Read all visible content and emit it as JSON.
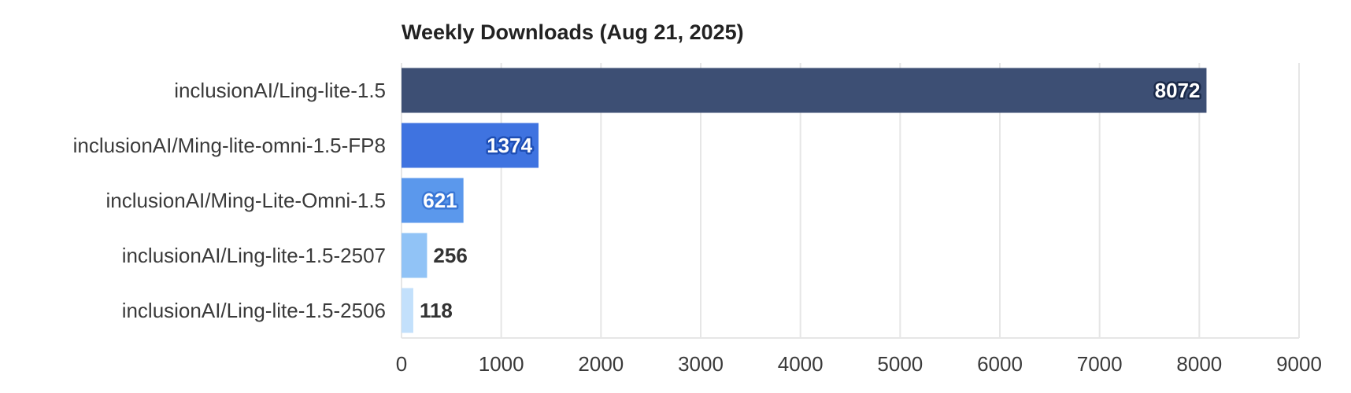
{
  "chart_data": {
    "type": "bar",
    "orientation": "horizontal",
    "title": "Weekly Downloads (Aug 21, 2025)",
    "xlabel": "",
    "ylabel": "",
    "xlim": [
      0,
      9000
    ],
    "ticks": [
      "0",
      "1000",
      "2000",
      "3000",
      "4000",
      "5000",
      "6000",
      "7000",
      "8000",
      "9000"
    ],
    "grid": true,
    "categories": [
      "inclusionAI/Ling-lite-1.5",
      "inclusionAI/Ming-lite-omni-1.5-FP8",
      "inclusionAI/Ming-Lite-Omni-1.5",
      "inclusionAI/Ling-lite-1.5-2507",
      "inclusionAI/Ling-lite-1.5-2506"
    ],
    "values": [
      8072,
      1374,
      621,
      256,
      118
    ],
    "value_labels": [
      "8072",
      "1374",
      "621",
      "256",
      "118"
    ],
    "colors": [
      "#3d4f74",
      "#3f73e0",
      "#5b98ec",
      "#91c3f6",
      "#c3e0fb"
    ],
    "label_outline_colors": [
      "#1b2a4a",
      "#1f4fb5",
      "#3a77d6",
      "",
      ""
    ]
  }
}
